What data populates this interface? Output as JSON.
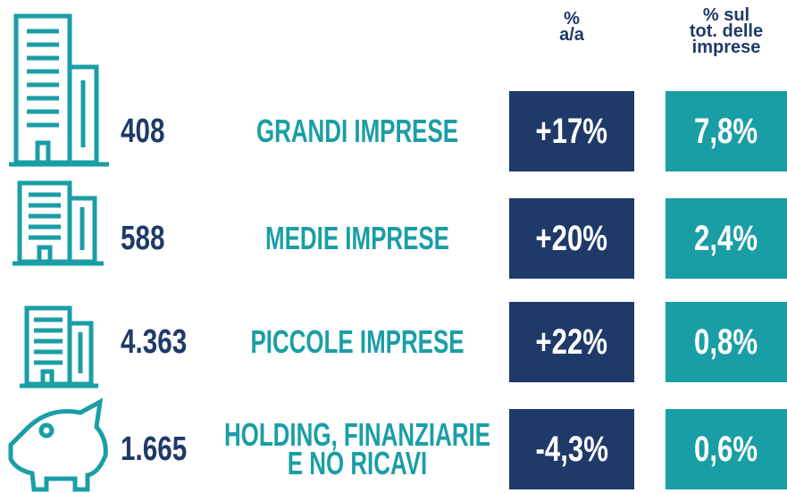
{
  "header": {
    "yoy": [
      "%",
      "a/a"
    ],
    "share": [
      "% sul",
      "tot. delle",
      "imprese"
    ]
  },
  "rows": [
    {
      "count": "408",
      "label": [
        "GRANDI IMPRESE"
      ],
      "yoy": "+17%",
      "share": "7,8%"
    },
    {
      "count": "588",
      "label": [
        "MEDIE IMPRESE"
      ],
      "yoy": "+20%",
      "share": "2,4%"
    },
    {
      "count": "4.363",
      "label": [
        "PICCOLE IMPRESE"
      ],
      "yoy": "+22%",
      "share": "0,8%"
    },
    {
      "count": "1.665",
      "label": [
        "HOLDING, FINANZIARIE",
        "E NO RICAVI"
      ],
      "yoy": "-4,3%",
      "share": "0,6%"
    }
  ]
}
